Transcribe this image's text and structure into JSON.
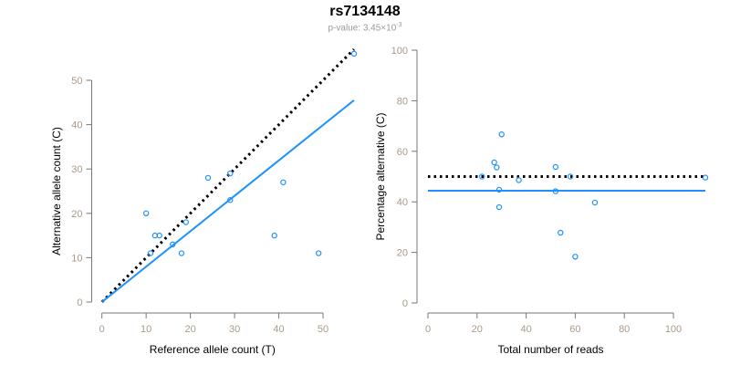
{
  "title": "rs7134148",
  "subtitle": {
    "prefix": "p-value: 3.45×10",
    "exponent": "-3"
  },
  "colors": {
    "points": "#1e90ff",
    "fit_line": "#1e90ff",
    "reference_line": "#000000",
    "axis": "#777777",
    "tick_label": "#a89a8a"
  },
  "chart_data": [
    {
      "type": "scatter",
      "xlabel": "Reference allele count (T)",
      "ylabel": "Alternative allele count (C)",
      "xlim": [
        0,
        57
      ],
      "ylim": [
        0,
        57
      ],
      "xticks": [
        0,
        10,
        20,
        30,
        40,
        50
      ],
      "yticks": [
        0,
        10,
        20,
        30,
        40,
        50
      ],
      "x": [
        57,
        10,
        11,
        12,
        13,
        16,
        18,
        19,
        24,
        29,
        29,
        39,
        41,
        49
      ],
      "y": [
        56,
        20,
        11,
        15,
        15,
        13,
        11,
        18,
        28,
        29,
        23,
        15,
        27,
        11
      ],
      "lines": [
        {
          "name": "expected (y = x)",
          "style": "dotted",
          "x": [
            0,
            57
          ],
          "y": [
            0,
            57
          ]
        },
        {
          "name": "fit",
          "style": "solid",
          "x": [
            0,
            57
          ],
          "y": [
            0,
            45.5
          ]
        }
      ],
      "grid": false
    },
    {
      "type": "scatter",
      "xlabel": "Total number of reads",
      "ylabel": "Percentage alternative (C)",
      "xlim": [
        0,
        113
      ],
      "ylim": [
        0,
        100
      ],
      "xticks": [
        0,
        20,
        40,
        60,
        80,
        100
      ],
      "yticks": [
        0,
        20,
        40,
        60,
        80,
        100
      ],
      "x": [
        113,
        30,
        22,
        27,
        28,
        29,
        29,
        37,
        52,
        58,
        52,
        54,
        68,
        60
      ],
      "y": [
        49.6,
        66.7,
        50.0,
        55.6,
        53.6,
        44.8,
        37.9,
        48.6,
        53.8,
        50.0,
        44.2,
        27.8,
        39.7,
        18.3
      ],
      "lines": [
        {
          "name": "expected 50%",
          "style": "dotted",
          "x": [
            0,
            113
          ],
          "y": [
            50,
            50
          ]
        },
        {
          "name": "fit",
          "style": "solid",
          "x": [
            0,
            113
          ],
          "y": [
            44.4,
            44.4
          ]
        }
      ],
      "grid": false
    }
  ]
}
